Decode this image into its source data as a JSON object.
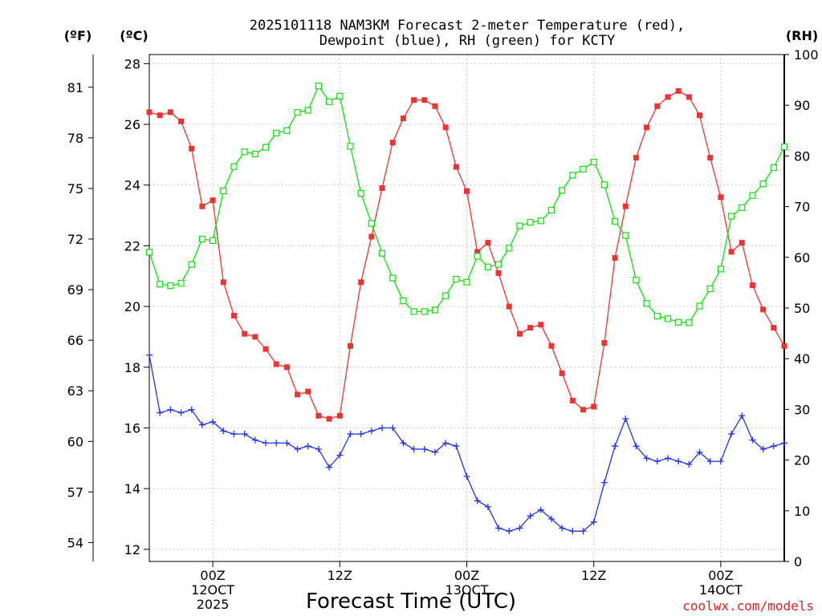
{
  "chart_data": {
    "type": "line",
    "title_lines": [
      "2025101118 NAM3KM Forecast 2-meter Temperature (red),",
      "Dewpoint (blue), RH (green) for KCTY"
    ],
    "xlabel": "Forecast Time (UTC)",
    "credit": "coolwx.com/models",
    "units": {
      "fahrenheit": "(ºF)",
      "celsius": "(ºC)",
      "rh": "(RH)"
    },
    "x_hours_range": [
      0,
      60
    ],
    "y_celsius_range": [
      11.6,
      28.3
    ],
    "y_rh_range": [
      0,
      100
    ],
    "fahrenheit_ticks": [
      "54",
      "57",
      "60",
      "63",
      "66",
      "69",
      "72",
      "75",
      "78",
      "81"
    ],
    "celsius_ticks": [
      "12",
      "14",
      "16",
      "18",
      "20",
      "22",
      "24",
      "26",
      "28"
    ],
    "rh_ticks": [
      "0",
      "10",
      "20",
      "30",
      "40",
      "50",
      "60",
      "70",
      "80",
      "90",
      "100"
    ],
    "x_ticks": [
      {
        "hour": 6,
        "lines": [
          "00Z",
          "12OCT",
          "2025"
        ]
      },
      {
        "hour": 18,
        "lines": [
          "12Z"
        ]
      },
      {
        "hour": 30,
        "lines": [
          "00Z",
          "13OCT"
        ]
      },
      {
        "hour": 42,
        "lines": [
          "12Z"
        ]
      },
      {
        "hour": 54,
        "lines": [
          "00Z",
          "14OCT"
        ]
      }
    ],
    "series": [
      {
        "name": "2-meter Temperature",
        "units": "C",
        "color": "#ee3333",
        "marker": "filled-square",
        "values": [
          26.4,
          26.3,
          26.4,
          26.1,
          25.2,
          23.3,
          23.5,
          20.8,
          19.7,
          19.1,
          19.0,
          18.6,
          18.1,
          18.0,
          17.1,
          17.2,
          16.4,
          16.3,
          16.4,
          18.7,
          20.8,
          22.3,
          23.9,
          25.4,
          26.2,
          26.8,
          26.8,
          26.6,
          25.9,
          24.6,
          23.8,
          21.8,
          22.1,
          21.1,
          20.0,
          19.1,
          19.3,
          19.4,
          18.7,
          17.8,
          16.9,
          16.6,
          16.7,
          18.8,
          21.6,
          23.3,
          24.9,
          25.9,
          26.6,
          26.9,
          27.1,
          26.9,
          26.3,
          24.9,
          23.6,
          21.8,
          22.1,
          20.7,
          19.9,
          19.3,
          18.7
        ]
      },
      {
        "name": "Dewpoint",
        "units": "C",
        "color": "#2233ee",
        "marker": "plus",
        "values": [
          18.4,
          16.5,
          16.6,
          16.5,
          16.6,
          16.1,
          16.2,
          15.9,
          15.8,
          15.8,
          15.6,
          15.5,
          15.5,
          15.5,
          15.3,
          15.4,
          15.3,
          14.7,
          15.1,
          15.8,
          15.8,
          15.9,
          16.0,
          16.0,
          15.5,
          15.3,
          15.3,
          15.2,
          15.5,
          15.4,
          14.4,
          13.6,
          13.4,
          12.7,
          12.6,
          12.7,
          13.1,
          13.3,
          13.0,
          12.7,
          12.6,
          12.6,
          12.9,
          14.2,
          15.4,
          16.3,
          15.4,
          15.0,
          14.9,
          15.0,
          14.9,
          14.8,
          15.2,
          14.9,
          14.9,
          15.8,
          16.4,
          15.6,
          15.3,
          15.4,
          15.5
        ]
      },
      {
        "name": "RH",
        "units": "%",
        "color": "#11dd11",
        "marker": "open-square",
        "values": [
          61.0,
          54.7,
          54.4,
          54.9,
          58.6,
          63.6,
          63.3,
          73.1,
          77.9,
          80.8,
          80.4,
          81.7,
          84.5,
          85.0,
          88.6,
          89.0,
          93.8,
          90.7,
          91.8,
          81.9,
          72.6,
          66.7,
          60.8,
          55.9,
          51.4,
          49.3,
          49.3,
          49.6,
          52.4,
          55.7,
          55.1,
          60.2,
          58.1,
          58.6,
          61.8,
          66.2,
          66.9,
          67.2,
          69.3,
          73.2,
          76.2,
          77.4,
          78.8,
          74.3,
          67.1,
          64.3,
          55.5,
          50.9,
          48.4,
          47.9,
          47.2,
          47.1,
          50.4,
          53.8,
          57.7,
          68.1,
          69.8,
          72.2,
          74.5,
          77.7,
          81.8
        ]
      }
    ]
  }
}
